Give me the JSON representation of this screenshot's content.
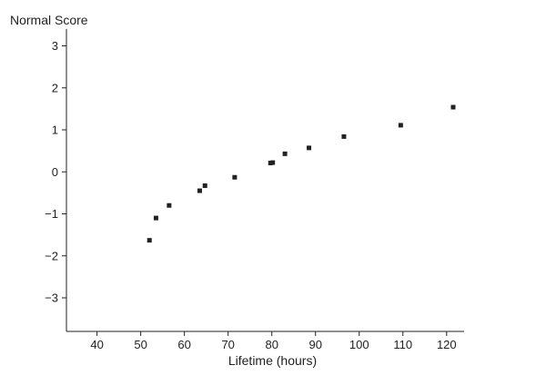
{
  "chart_data": {
    "type": "scatter",
    "xlabel": "Lifetime (hours)",
    "ylabel": "Normal Score",
    "xlim": [
      33,
      124
    ],
    "ylim": [
      -3.8,
      3.4
    ],
    "x_ticks": [
      40,
      50,
      60,
      70,
      80,
      90,
      100,
      110,
      120
    ],
    "y_ticks": [
      3,
      2,
      1,
      0,
      -1,
      -2,
      -3
    ],
    "y_tick_labels": [
      "3",
      "2",
      "1",
      "0",
      "−1",
      "−2",
      "−3"
    ],
    "grid": false,
    "points": [
      {
        "x": 52,
        "y": -1.63
      },
      {
        "x": 53.5,
        "y": -1.1
      },
      {
        "x": 56.5,
        "y": -0.8
      },
      {
        "x": 63.5,
        "y": -0.45
      },
      {
        "x": 64.7,
        "y": -0.33
      },
      {
        "x": 71.5,
        "y": -0.13
      },
      {
        "x": 79.7,
        "y": 0.21
      },
      {
        "x": 80.2,
        "y": 0.22
      },
      {
        "x": 83,
        "y": 0.43
      },
      {
        "x": 88.5,
        "y": 0.57
      },
      {
        "x": 96.5,
        "y": 0.84
      },
      {
        "x": 109.5,
        "y": 1.11
      },
      {
        "x": 121.5,
        "y": 1.54
      }
    ]
  }
}
